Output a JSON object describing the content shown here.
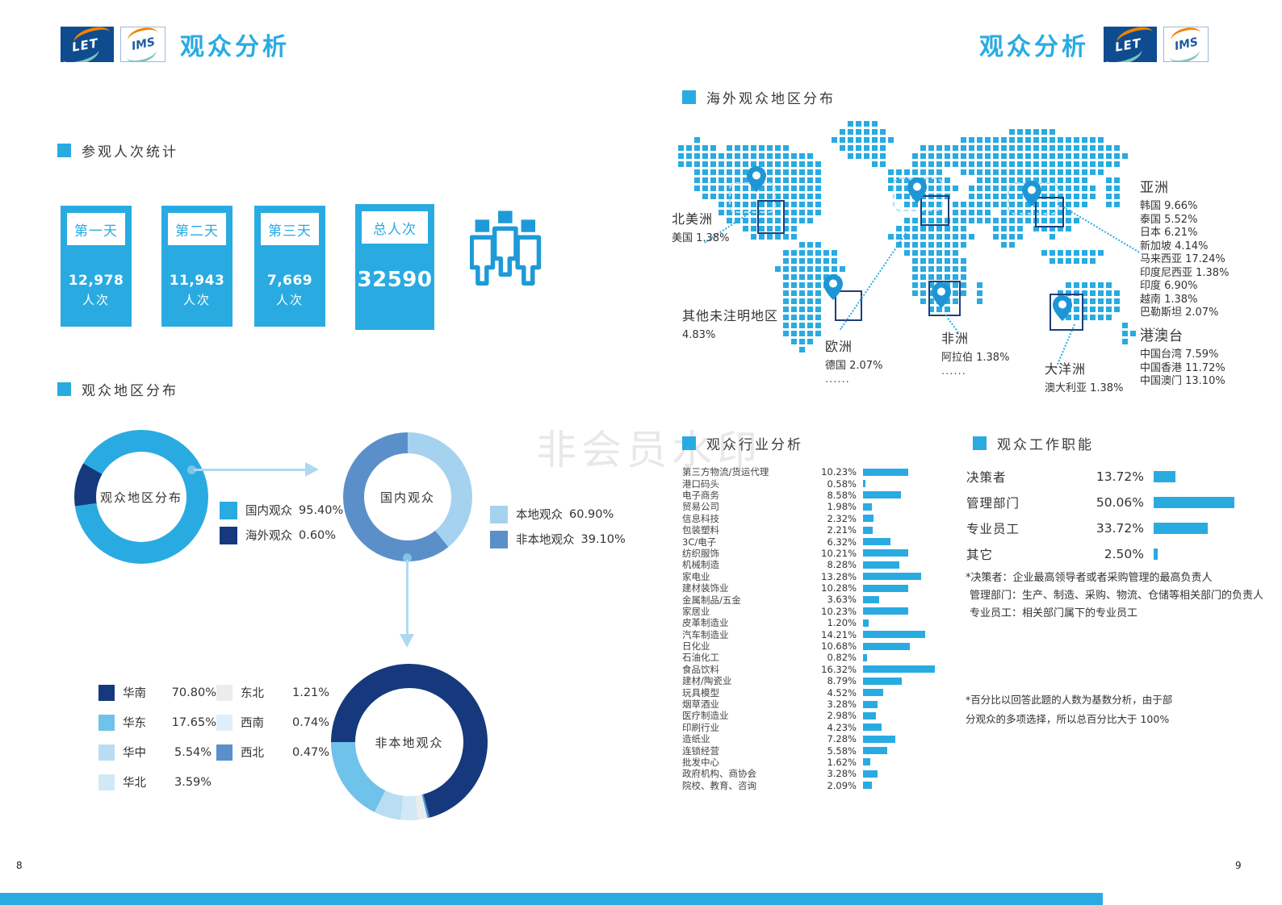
{
  "header": {
    "title": "观众分析",
    "logo_let": "LET",
    "logo_ims": "IMS"
  },
  "sections": {
    "visitor_stats": "参观人次统计",
    "region_dist": "观众地区分布",
    "overseas": "海外观众地区分布",
    "industry": "观众行业分析",
    "job": "观众工作职能"
  },
  "visitor_stats": {
    "cards": [
      {
        "label": "第一天",
        "value": "12,978",
        "unit": "人次"
      },
      {
        "label": "第二天",
        "value": "11,943",
        "unit": "人次"
      },
      {
        "label": "第三天",
        "value": "7,669",
        "unit": "人次"
      },
      {
        "label": "总人次",
        "value": "32590",
        "unit": ""
      }
    ]
  },
  "chart_data": [
    {
      "type": "pie",
      "title": "观众地区分布",
      "labels": [
        "国内观众",
        "海外观众"
      ],
      "values": [
        95.4,
        0.6
      ],
      "colors": [
        "#29abe2",
        "#16397e"
      ],
      "legend_position": "right"
    },
    {
      "type": "pie",
      "title": "国内观众",
      "labels": [
        "本地观众",
        "非本地观众"
      ],
      "values": [
        60.9,
        39.1
      ],
      "colors": [
        "#a5d2ee",
        "#5b8fca"
      ],
      "legend_position": "right"
    },
    {
      "type": "pie",
      "title": "非本地观众",
      "labels": [
        "华南",
        "华东",
        "华中",
        "华北",
        "东北",
        "西南",
        "西北"
      ],
      "values": [
        70.8,
        17.65,
        5.54,
        3.59,
        1.21,
        0.74,
        0.47
      ],
      "colors": [
        "#16397e",
        "#6fc2ea",
        "#b9ddf3",
        "#d3e8f6",
        "#ececec",
        "#e0eefa",
        "#5b8fca"
      ],
      "legend_position": "left"
    },
    {
      "type": "bar",
      "orientation": "horizontal",
      "title": "观众行业分析",
      "categories": [
        "第三方物流/货运代理",
        "港口码头",
        "电子商务",
        "贸易公司",
        "信息科技",
        "包装塑料",
        "3C/电子",
        "纺织服饰",
        "机械制造",
        "家电业",
        "建材装饰业",
        "金属制品/五金",
        "家居业",
        "皮革制造业",
        "汽车制造业",
        "日化业",
        "石油化工",
        "食品饮料",
        "建材/陶瓷业",
        "玩具模型",
        "烟草酒业",
        "医疗制造业",
        "印刷行业",
        "造纸业",
        "连锁经营",
        "批发中心",
        "政府机构、商协会",
        "院校、教育、咨询"
      ],
      "values": [
        10.23,
        0.58,
        8.58,
        1.98,
        2.32,
        2.21,
        6.32,
        10.21,
        8.28,
        13.28,
        10.28,
        3.63,
        10.23,
        1.2,
        14.21,
        10.68,
        0.82,
        16.32,
        8.79,
        4.52,
        3.28,
        2.98,
        4.23,
        7.28,
        5.58,
        1.62,
        3.28,
        2.09
      ],
      "unit": "%",
      "bar_color": "#29abe2",
      "xlim": [
        0,
        17
      ]
    },
    {
      "type": "bar",
      "orientation": "horizontal",
      "title": "观众工作职能",
      "categories": [
        "决策者",
        "管理部门",
        "专业员工",
        "其它"
      ],
      "values": [
        13.72,
        50.06,
        33.72,
        2.5
      ],
      "unit": "%",
      "bar_color": "#29abe2",
      "xlim": [
        0,
        55
      ]
    },
    {
      "type": "map",
      "title": "海外观众地区分布",
      "regions": [
        {
          "name": "北美洲",
          "items": [
            {
              "label": "美国",
              "value": "1.38%"
            }
          ],
          "more": ""
        },
        {
          "name": "其他未注明地区",
          "items": [
            {
              "label": "",
              "value": "4.83%"
            }
          ],
          "more": ""
        },
        {
          "name": "欧洲",
          "items": [
            {
              "label": "德国",
              "value": "2.07%"
            }
          ],
          "more": "......"
        },
        {
          "name": "非洲",
          "items": [
            {
              "label": "阿拉伯",
              "value": "1.38%"
            }
          ],
          "more": "......"
        },
        {
          "name": "大洋洲",
          "items": [
            {
              "label": "澳大利亚",
              "value": "1.38%"
            }
          ],
          "more": ""
        },
        {
          "name": "亚洲",
          "items": [
            {
              "label": "韩国",
              "value": "9.66%"
            },
            {
              "label": "泰国",
              "value": "5.52%"
            },
            {
              "label": "日本",
              "value": "6.21%"
            },
            {
              "label": "新加坡",
              "value": "4.14%"
            },
            {
              "label": "马来西亚",
              "value": "17.24%"
            },
            {
              "label": "印度尼西亚",
              "value": "1.38%"
            },
            {
              "label": "印度",
              "value": "6.90%"
            },
            {
              "label": "越南",
              "value": "1.38%"
            },
            {
              "label": "巴勒斯坦",
              "value": "2.07%"
            }
          ],
          "more": "......"
        },
        {
          "name": "港澳台",
          "items": [
            {
              "label": "中国台湾",
              "value": "7.59%"
            },
            {
              "label": "中国香港",
              "value": "11.72%"
            },
            {
              "label": "中国澳门",
              "value": "13.10%"
            }
          ],
          "more": ""
        }
      ]
    }
  ],
  "notes": {
    "line1": "*决策者：企业最高领导者或者采购管理的最高负责人",
    "line2": "管理部门：生产、制造、采购、物流、仓储等相关部门的负责人",
    "line3": "专业员工：相关部门属下的专业员工"
  },
  "footnote": {
    "line1": "*百分比以回答此题的人数为基数分析，由于部",
    "line2": "分观众的多项选择，所以总百分比大于 100%"
  },
  "watermark": "非会员水印",
  "footer": {
    "page_left": "8",
    "page_right": "9"
  }
}
